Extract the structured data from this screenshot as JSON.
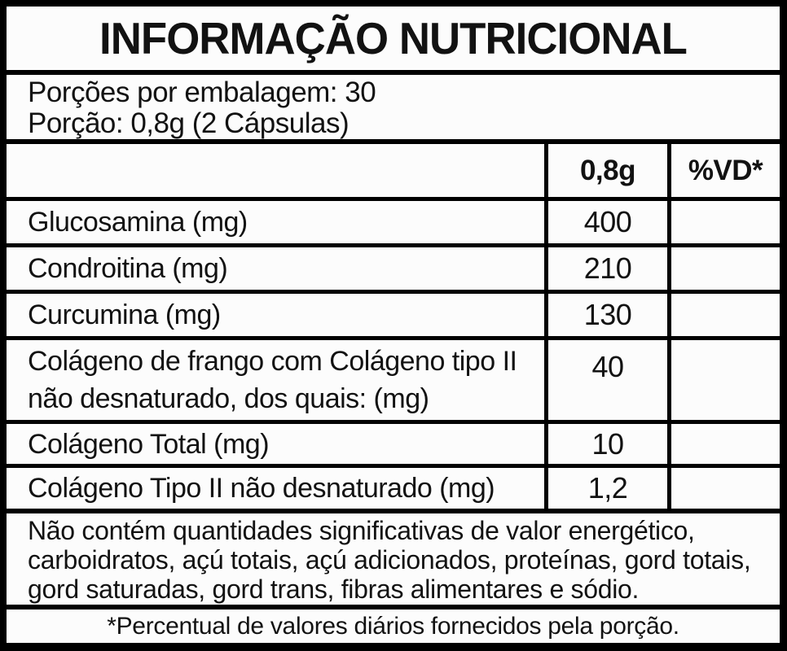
{
  "title": "INFORMAÇÃO NUTRICIONAL",
  "serving_info": {
    "servings_per_package": "Porções por embalagem: 30",
    "serving_size": "Porção: 0,8g (2 Cápsulas)"
  },
  "table": {
    "columns": {
      "nutrient": "",
      "amount": "0,8g",
      "dv": "%VD*"
    },
    "rows": [
      {
        "label": "Glucosamina (mg)",
        "amount": "400",
        "dv": ""
      },
      {
        "label": "Condroitina (mg)",
        "amount": "210",
        "dv": ""
      },
      {
        "label": "Curcumina (mg)",
        "amount": "130",
        "dv": ""
      },
      {
        "label": "Colágeno de frango com Colágeno tipo II não desnaturado, dos quais: (mg)",
        "amount": "40",
        "dv": ""
      },
      {
        "label": "Colágeno Total (mg)",
        "amount": "10",
        "dv": ""
      },
      {
        "label": "Colágeno Tipo II não desnaturado (mg)",
        "amount": "1,2",
        "dv": ""
      }
    ]
  },
  "footer": {
    "insignificant_amounts": "Não contém quantidades significativas de valor energético, carboidratos, açú totais, açú adicionados, proteínas, gord totais, gord saturadas, gord trans, fibras alimentares e sódio.",
    "daily_value_note": "*Percentual de valores diários fornecidos pela porção."
  },
  "colors": {
    "border": "#000000",
    "paper": "#fcfcfc",
    "text": "#121212"
  }
}
